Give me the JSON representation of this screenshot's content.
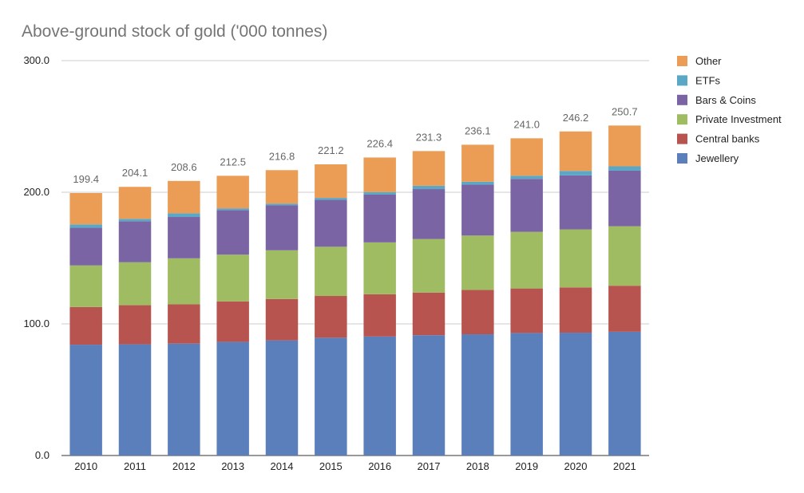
{
  "chart_data": {
    "type": "bar",
    "stacked": true,
    "title": "Above-ground stock of gold ('000 tonnes)",
    "xlabel": "",
    "ylabel": "",
    "ylim": [
      0,
      300
    ],
    "yticks": [
      "0.0",
      "100.0",
      "200.0",
      "300.0"
    ],
    "grid": true,
    "legend_position": "right",
    "categories": [
      "2010",
      "2011",
      "2012",
      "2013",
      "2014",
      "2015",
      "2016",
      "2017",
      "2018",
      "2019",
      "2020",
      "2021"
    ],
    "totals": [
      "199.4",
      "204.1",
      "208.6",
      "212.5",
      "216.8",
      "221.2",
      "226.4",
      "231.3",
      "236.1",
      "241.0",
      "246.2",
      "250.7"
    ],
    "series": [
      {
        "name": "Jewellery",
        "color": "#5b7fbb",
        "values": [
          84.2,
          84.5,
          85.0,
          86.3,
          87.5,
          89.5,
          90.4,
          91.4,
          92.1,
          93.1,
          93.3,
          94.0
        ]
      },
      {
        "name": "Central banks",
        "color": "#b85450",
        "values": [
          28.6,
          29.7,
          29.9,
          30.8,
          31.4,
          31.7,
          32.1,
          32.4,
          33.7,
          33.8,
          34.4,
          35.0
        ]
      },
      {
        "name": "Private Investment",
        "color": "#9fbc62",
        "values": [
          31.6,
          32.6,
          34.9,
          35.5,
          37.0,
          37.4,
          39.4,
          40.7,
          41.3,
          43.0,
          44.1,
          45.2
        ]
      },
      {
        "name": "Bars & Coins",
        "color": "#7b64a3",
        "values": [
          28.6,
          31.2,
          31.4,
          33.9,
          34.3,
          35.6,
          36.3,
          37.9,
          38.7,
          40.2,
          41.0,
          42.2
        ]
      },
      {
        "name": "ETFs",
        "color": "#5aa7c6",
        "values": [
          2.6,
          1.8,
          2.8,
          1.3,
          1.2,
          1.5,
          1.9,
          2.5,
          2.2,
          2.4,
          3.4,
          3.3
        ]
      },
      {
        "name": "Other",
        "color": "#eb9d55",
        "values": [
          23.8,
          24.3,
          24.6,
          24.7,
          25.4,
          25.5,
          26.3,
          26.4,
          28.1,
          28.5,
          30.0,
          31.0
        ]
      }
    ]
  }
}
